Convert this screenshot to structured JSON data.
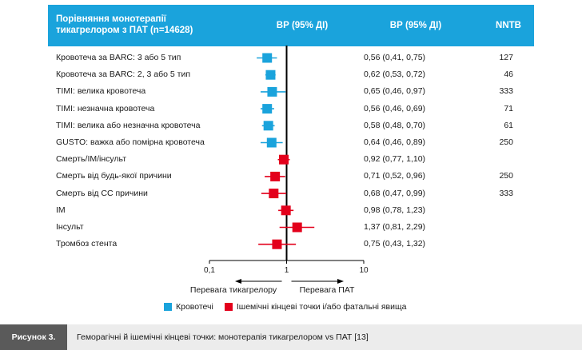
{
  "header": {
    "title_line1": "Порівняння монотерапії",
    "title_line2": "тикагрелором з ПАТ (n=14628)",
    "col_or_plot": "ВР (95% ДІ)",
    "col_or_text": "ВР (95% ДІ)",
    "col_nntb": "NNTB"
  },
  "chart_data": {
    "type": "forest",
    "x_scale": "log",
    "xlim": [
      0.1,
      10
    ],
    "ticks": [
      "0,1",
      "1",
      "10"
    ],
    "tick_values": [
      0.1,
      1,
      10
    ],
    "reference_line": 1,
    "favors_left": "Перевага тикагрелору",
    "favors_right": "Перевага ПАТ",
    "groups": [
      {
        "name": "Кровотечі",
        "color": "#1aa3dc"
      },
      {
        "name": "Ішемічні кінцеві точки і/або фатальні явища",
        "color": "#e3001b"
      }
    ],
    "rows": [
      {
        "label": "Кровотеча за BARC: 3 або 5 тип",
        "hr": 0.56,
        "lo": 0.41,
        "hi": 0.75,
        "ci_text": "0,56 (0,41, 0,75)",
        "nntb": "127",
        "group": 0
      },
      {
        "label": "Кровотеча за BARC: 2, 3 або 5 тип",
        "hr": 0.62,
        "lo": 0.53,
        "hi": 0.72,
        "ci_text": "0,62 (0,53, 0,72)",
        "nntb": "46",
        "group": 0
      },
      {
        "label": "TIMI: велика кровотеча",
        "hr": 0.65,
        "lo": 0.46,
        "hi": 0.97,
        "ci_text": "0,65 (0,46, 0,97)",
        "nntb": "333",
        "group": 0
      },
      {
        "label": "TIMI: незначна кровотеча",
        "hr": 0.56,
        "lo": 0.46,
        "hi": 0.69,
        "ci_text": "0,56 (0,46, 0,69)",
        "nntb": "71",
        "group": 0
      },
      {
        "label": "TIMI: велика або незначна кровотеча",
        "hr": 0.58,
        "lo": 0.48,
        "hi": 0.7,
        "ci_text": "0,58 (0,48, 0,70)",
        "nntb": "61",
        "group": 0
      },
      {
        "label": "GUSTO: важка або помірна кровотеча",
        "hr": 0.64,
        "lo": 0.46,
        "hi": 0.89,
        "ci_text": "0,64 (0,46, 0,89)",
        "nntb": "250",
        "group": 0
      },
      {
        "label": "Смерть/IM/інсульт",
        "hr": 0.92,
        "lo": 0.77,
        "hi": 1.1,
        "ci_text": "0,92 (0,77, 1,10)",
        "nntb": "",
        "group": 1
      },
      {
        "label": "Смерть від будь-якої причини",
        "hr": 0.71,
        "lo": 0.52,
        "hi": 0.96,
        "ci_text": "0,71 (0,52, 0,96)",
        "nntb": "250",
        "group": 1
      },
      {
        "label": "Смерть від СС причини",
        "hr": 0.68,
        "lo": 0.47,
        "hi": 0.99,
        "ci_text": "0,68 (0,47, 0,99)",
        "nntb": "333",
        "group": 1
      },
      {
        "label": "IM",
        "hr": 0.98,
        "lo": 0.78,
        "hi": 1.23,
        "ci_text": "0,98 (0,78, 1,23)",
        "nntb": "",
        "group": 1
      },
      {
        "label": "Інсульт",
        "hr": 1.37,
        "lo": 0.81,
        "hi": 2.29,
        "ci_text": "1,37 (0,81, 2,29)",
        "nntb": "",
        "group": 1
      },
      {
        "label": "Тромбоз стента",
        "hr": 0.75,
        "lo": 0.43,
        "hi": 1.32,
        "ci_text": "0,75 (0,43, 1,32)",
        "nntb": "",
        "group": 1
      }
    ]
  },
  "legend": {
    "blue_label": "Кровотечі",
    "red_label": "Ішемічні кінцеві точки і/або фатальні явища"
  },
  "caption": {
    "label": "Рисунок 3.",
    "text": "Геморагічні й ішемічні кінцеві точки: монотерапія тикагрелором vs ПАТ [13]"
  }
}
